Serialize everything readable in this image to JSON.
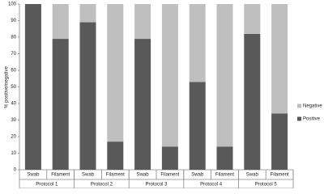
{
  "chart_data": {
    "type": "stacked_bar",
    "y_label": "% positive/negative",
    "categories": [
      "Swab",
      "Filament",
      "Swab",
      "Filament",
      "Swab",
      "Filament",
      "Swab",
      "Filament",
      "Swab",
      "Filament"
    ],
    "groups": [
      "Protocol 1",
      "Protocol 2",
      "Protocol 3",
      "Protocol 4",
      "Protocol 5"
    ],
    "series": [
      {
        "name": "Positive",
        "color": "#595959",
        "values": [
          100,
          79,
          89,
          17,
          79,
          14,
          53,
          14,
          82,
          34
        ]
      },
      {
        "name": "Negative",
        "color": "#bfbfbf",
        "values": [
          0,
          21,
          11,
          83,
          21,
          86,
          47,
          86,
          18,
          66
        ]
      }
    ],
    "ylim": [
      0,
      100
    ],
    "yticks": [
      0,
      10,
      20,
      30,
      40,
      50,
      60,
      70,
      80,
      90,
      100
    ]
  }
}
